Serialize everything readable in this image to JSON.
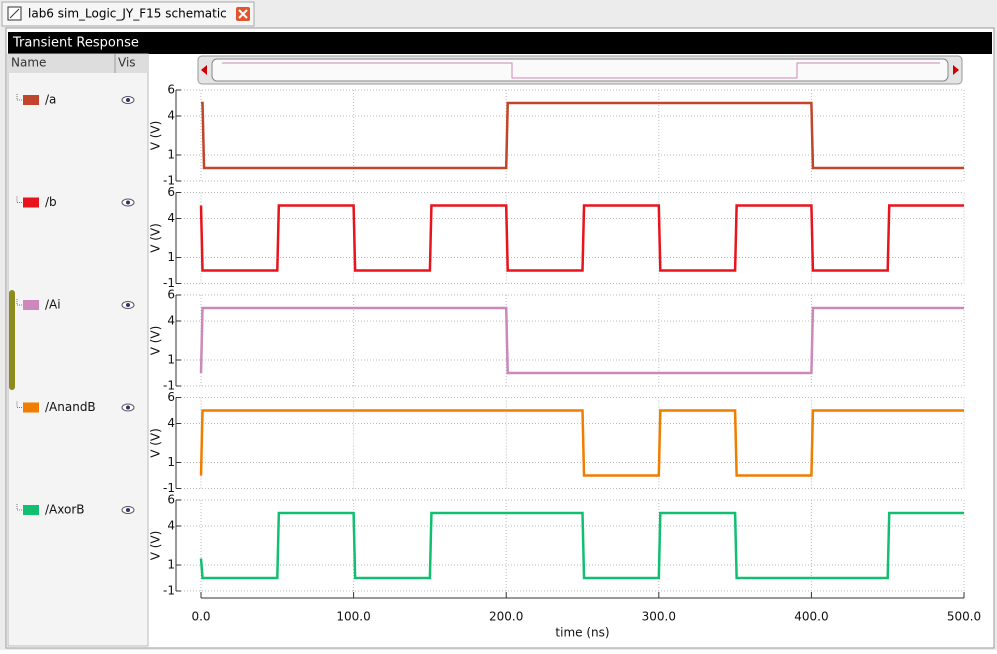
{
  "tab": {
    "title": "lab6 sim_Logic_JY_F15 schematic"
  },
  "window": {
    "title": "Transient Response"
  },
  "signal_list": {
    "headers": [
      "Name",
      "Vis"
    ]
  },
  "chart_data": [
    {
      "type": "line",
      "ylabel": "V (V)",
      "xlim": [
        0,
        500
      ],
      "ylim": [
        -1,
        6
      ],
      "yticks": [
        -1,
        1,
        4,
        6
      ],
      "grid": true,
      "x": [
        0,
        1,
        2,
        200,
        201,
        400,
        401,
        500
      ],
      "series": [
        {
          "name": "/a",
          "color": "#c0452a",
          "values": [
            5,
            5,
            0,
            0,
            5,
            5,
            0,
            0
          ]
        }
      ]
    },
    {
      "type": "line",
      "ylabel": "V (V)",
      "xlim": [
        0,
        500
      ],
      "ylim": [
        -1,
        6
      ],
      "yticks": [
        -1,
        1,
        4,
        6
      ],
      "grid": true,
      "x": [
        0,
        1,
        50,
        51,
        100,
        101,
        150,
        151,
        200,
        201,
        250,
        251,
        300,
        301,
        350,
        351,
        400,
        401,
        450,
        451,
        500
      ],
      "series": [
        {
          "name": "/b",
          "color": "#e8141c",
          "values": [
            5,
            0,
            0,
            5,
            5,
            0,
            0,
            5,
            5,
            0,
            0,
            5,
            5,
            0,
            0,
            5,
            5,
            0,
            0,
            5,
            5
          ]
        }
      ]
    },
    {
      "type": "line",
      "ylabel": "V (V)",
      "xlim": [
        0,
        500
      ],
      "ylim": [
        -1,
        6
      ],
      "yticks": [
        -1,
        1,
        4,
        6
      ],
      "grid": true,
      "x": [
        0,
        1,
        200,
        201,
        400,
        401,
        500
      ],
      "series": [
        {
          "name": "/Ai",
          "color": "#cc88bb",
          "values": [
            0,
            5,
            5,
            0,
            0,
            5,
            5
          ]
        }
      ]
    },
    {
      "type": "line",
      "ylabel": "V (V)",
      "xlim": [
        0,
        500
      ],
      "ylim": [
        -1,
        6
      ],
      "yticks": [
        -1,
        1,
        4,
        6
      ],
      "grid": true,
      "x": [
        0,
        1,
        250,
        251,
        300,
        301,
        350,
        351,
        400,
        401,
        500
      ],
      "series": [
        {
          "name": "/AnandB",
          "color": "#f07d00",
          "values": [
            0,
            5,
            5,
            0,
            0,
            5,
            5,
            0,
            0,
            5,
            5
          ]
        }
      ]
    },
    {
      "type": "line",
      "ylabel": "V (V)",
      "xlim": [
        0,
        500
      ],
      "ylim": [
        -1,
        6
      ],
      "yticks": [
        -1,
        1,
        4,
        6
      ],
      "grid": true,
      "x": [
        0,
        1,
        50,
        51,
        100,
        101,
        150,
        151,
        250,
        251,
        300,
        301,
        350,
        351,
        450,
        451,
        500
      ],
      "series": [
        {
          "name": "/AxorB",
          "color": "#10c070",
          "values": [
            1.5,
            0,
            0,
            5,
            5,
            0,
            0,
            5,
            5,
            0,
            0,
            5,
            5,
            0,
            0,
            5,
            5
          ]
        }
      ],
      "xlabel": "time (ns)",
      "xticks": [
        {
          "value": 0,
          "label": "0.0"
        },
        {
          "value": 100,
          "label": "100.0"
        },
        {
          "value": 200,
          "label": "200.0"
        },
        {
          "value": 300,
          "label": "300.0"
        },
        {
          "value": 400,
          "label": "400.0"
        },
        {
          "value": 500,
          "label": "500.0"
        }
      ]
    }
  ]
}
